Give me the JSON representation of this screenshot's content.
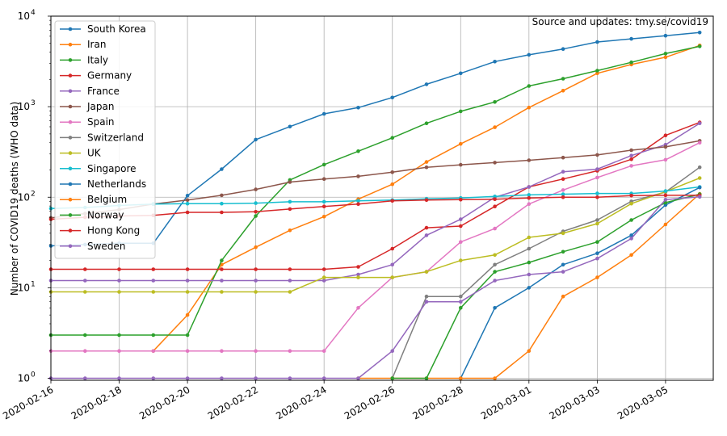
{
  "chart_data": {
    "type": "line",
    "ylabel": "Number of COVID19 deaths (WHO data)",
    "yscale": "log",
    "ylim": [
      0.95,
      10000
    ],
    "xlim": [
      "2020-02-16",
      "2020-03-06"
    ],
    "grid": true,
    "legend_position": "top-left",
    "annotation": "Source and updates: tmy.se/covid19",
    "x": [
      "2020-02-16",
      "2020-02-17",
      "2020-02-18",
      "2020-02-19",
      "2020-02-20",
      "2020-02-21",
      "2020-02-22",
      "2020-02-23",
      "2020-02-24",
      "2020-02-25",
      "2020-02-26",
      "2020-02-27",
      "2020-02-28",
      "2020-02-29",
      "2020-03-01",
      "2020-03-02",
      "2020-03-03",
      "2020-03-04",
      "2020-03-05",
      "2020-03-06"
    ],
    "x_tick_labels": [
      "2020-02-16",
      "2020-02-18",
      "2020-02-20",
      "2020-02-22",
      "2020-02-24",
      "2020-02-26",
      "2020-02-28",
      "2020-03-01",
      "2020-03-03",
      "2020-03-05"
    ],
    "y_tick_labels": [
      {
        "value": 1,
        "mantissa": "10",
        "exponent": "0"
      },
      {
        "value": 10,
        "mantissa": "10",
        "exponent": "1"
      },
      {
        "value": 100,
        "mantissa": "10",
        "exponent": "2"
      },
      {
        "value": 1000,
        "mantissa": "10",
        "exponent": "3"
      },
      {
        "value": 10000,
        "mantissa": "10",
        "exponent": "4"
      }
    ],
    "series": [
      {
        "name": "South Korea",
        "color": "#1f77b4",
        "values": [
          29,
          30,
          31,
          31,
          104,
          204,
          433,
          602,
          833,
          977,
          1261,
          1766,
          2337,
          3150,
          3736,
          4335,
          5186,
          5621,
          6088,
          6593
        ]
      },
      {
        "name": "Iran",
        "color": "#ff7f0e",
        "values": [
          null,
          null,
          null,
          2,
          5,
          18,
          28,
          43,
          61,
          95,
          139,
          245,
          388,
          593,
          978,
          1501,
          2336,
          2922,
          3513,
          4747
        ]
      },
      {
        "name": "Italy",
        "color": "#2ca02c",
        "values": [
          3,
          3,
          3,
          3,
          3,
          20,
          62,
          155,
          229,
          322,
          453,
          655,
          888,
          1128,
          1694,
          2036,
          2502,
          3089,
          3858,
          4636
        ]
      },
      {
        "name": "Germany",
        "color": "#d62728",
        "values": [
          16,
          16,
          16,
          16,
          16,
          16,
          16,
          16,
          16,
          17,
          27,
          46,
          48,
          79,
          130,
          159,
          196,
          262,
          482,
          670
        ]
      },
      {
        "name": "France",
        "color": "#9467bd",
        "values": [
          12,
          12,
          12,
          12,
          12,
          12,
          12,
          12,
          12,
          14,
          18,
          38,
          57,
          100,
          130,
          191,
          204,
          288,
          380,
          656
        ]
      },
      {
        "name": "Japan",
        "color": "#8c564b",
        "values": [
          59,
          66,
          73,
          84,
          93,
          105,
          122,
          147,
          159,
          170,
          189,
          214,
          228,
          241,
          256,
          274,
          293,
          331,
          360,
          420
        ]
      },
      {
        "name": "Spain",
        "color": "#e377c2",
        "values": [
          2,
          2,
          2,
          2,
          2,
          2,
          2,
          2,
          2,
          6,
          13,
          15,
          32,
          45,
          84,
          120,
          165,
          222,
          259,
          400
        ]
      },
      {
        "name": "Switzerland",
        "color": "#7f7f7f",
        "values": [
          null,
          null,
          null,
          null,
          null,
          null,
          null,
          null,
          null,
          null,
          1,
          8,
          8,
          18,
          27,
          42,
          56,
          90,
          114,
          214
        ]
      },
      {
        "name": "UK",
        "color": "#bcbd22",
        "values": [
          9,
          9,
          9,
          9,
          9,
          9,
          9,
          9,
          13,
          13,
          13,
          15,
          20,
          23,
          36,
          40,
          51,
          85,
          115,
          163
        ]
      },
      {
        "name": "Singapore",
        "color": "#17becf",
        "values": [
          75,
          77,
          81,
          84,
          85,
          85,
          86,
          89,
          89,
          91,
          93,
          96,
          98,
          102,
          106,
          108,
          110,
          110,
          117,
          130
        ]
      },
      {
        "name": "Netherlands",
        "color": "#1f77b4",
        "values": [
          null,
          null,
          null,
          null,
          null,
          null,
          null,
          null,
          null,
          null,
          null,
          null,
          1,
          6,
          10,
          18,
          24,
          38,
          82,
          128
        ]
      },
      {
        "name": "Belgium",
        "color": "#ff7f0e",
        "values": [
          null,
          null,
          null,
          null,
          null,
          null,
          null,
          null,
          null,
          1,
          1,
          1,
          1,
          1,
          2,
          8,
          13,
          23,
          50,
          109
        ]
      },
      {
        "name": "Norway",
        "color": "#2ca02c",
        "values": [
          null,
          null,
          null,
          null,
          null,
          null,
          null,
          null,
          null,
          null,
          1,
          1,
          6,
          15,
          19,
          25,
          32,
          56,
          87,
          108
        ]
      },
      {
        "name": "Hong Kong",
        "color": "#d62728",
        "values": [
          57,
          60,
          62,
          63,
          68,
          68,
          69,
          74,
          79,
          84,
          91,
          93,
          94,
          95,
          98,
          100,
          100,
          104,
          105,
          105
        ]
      },
      {
        "name": "Sweden",
        "color": "#9467bd",
        "values": [
          1,
          1,
          1,
          1,
          1,
          1,
          1,
          1,
          1,
          1,
          2,
          7,
          7,
          12,
          14,
          15,
          21,
          35,
          94,
          101
        ]
      }
    ]
  }
}
